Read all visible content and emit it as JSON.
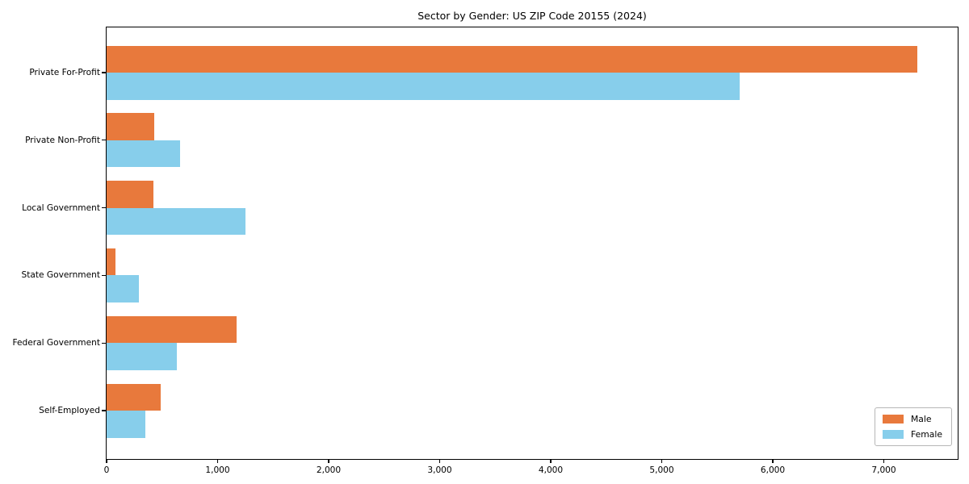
{
  "figure": {
    "background_color": "#ffffff",
    "axis_color": "#000000"
  },
  "chart_data": {
    "type": "bar",
    "orientation": "horizontal",
    "title": "Sector by Gender: US ZIP Code 20155 (2024)",
    "xlabel": "",
    "ylabel": "",
    "categories": [
      "Private For-Profit",
      "Private Non-Profit",
      "Local Government",
      "State Government",
      "Federal Government",
      "Self-Employed"
    ],
    "series": [
      {
        "name": "Male",
        "color": "#e8793c",
        "values": [
          7300,
          430,
          420,
          80,
          1170,
          490
        ]
      },
      {
        "name": "Female",
        "color": "#87ceeb",
        "values": [
          5700,
          660,
          1250,
          290,
          630,
          350
        ]
      }
    ],
    "xlim": [
      0,
      7680
    ],
    "xticks": [
      0,
      1000,
      2000,
      3000,
      4000,
      5000,
      6000,
      7000
    ],
    "xtick_labels": [
      "0",
      "1,000",
      "2,000",
      "3,000",
      "4,000",
      "5,000",
      "6,000",
      "7,000"
    ],
    "grid": false,
    "legend": {
      "position": "lower right",
      "entries": [
        "Male",
        "Female"
      ]
    }
  }
}
